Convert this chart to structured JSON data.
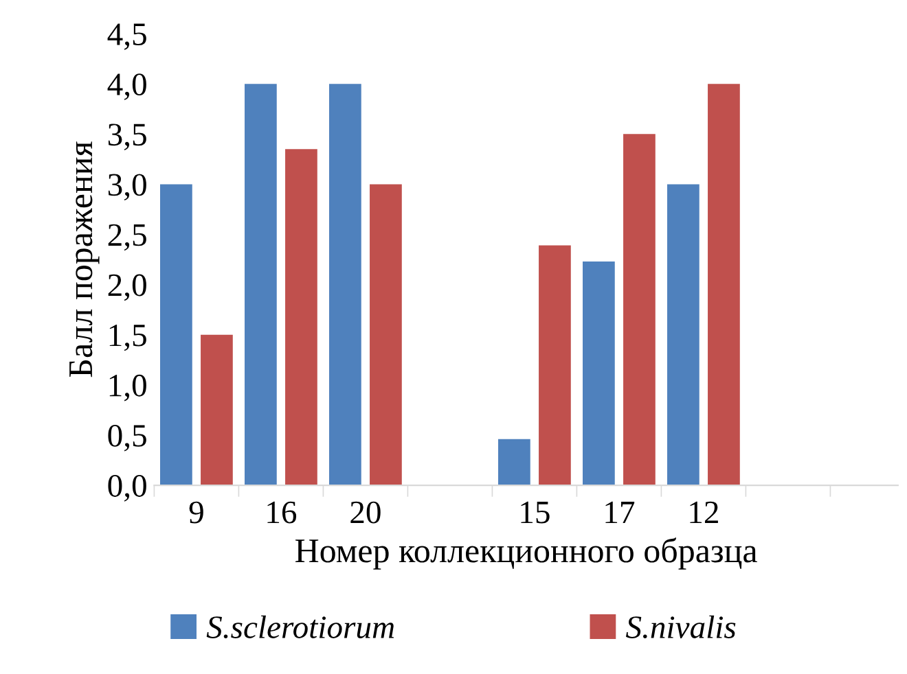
{
  "chart_data": {
    "type": "bar",
    "xlabel": "Номер коллекционного образца",
    "ylabel": "Балл поражения",
    "categories": [
      "9",
      "16",
      "20",
      null,
      "15",
      "17",
      "12",
      null
    ],
    "series": [
      {
        "name": "S.sclerotiorum",
        "color": "#4f81bd",
        "values": [
          3,
          4,
          4,
          null,
          0.46,
          2.23,
          3,
          null
        ]
      },
      {
        "name": "S.nivalis",
        "color": "#c0504d",
        "values": [
          1.5,
          3.35,
          3,
          null,
          2.39,
          3.5,
          4,
          null
        ]
      }
    ],
    "ylim": [
      0,
      4.5
    ],
    "yticks": [
      {
        "value": 0,
        "label": "0,0"
      },
      {
        "value": 0.5,
        "label": "0,5"
      },
      {
        "value": 1,
        "label": "1,0"
      },
      {
        "value": 1.5,
        "label": "1,5"
      },
      {
        "value": 2,
        "label": "2,0"
      },
      {
        "value": 2.5,
        "label": "2,5"
      },
      {
        "value": 3,
        "label": "3,0"
      },
      {
        "value": 3.5,
        "label": "3,5"
      },
      {
        "value": 4,
        "label": "4,0"
      },
      {
        "value": 4.5,
        "label": "4,5"
      }
    ],
    "grid": false,
    "legend": "bottom"
  }
}
